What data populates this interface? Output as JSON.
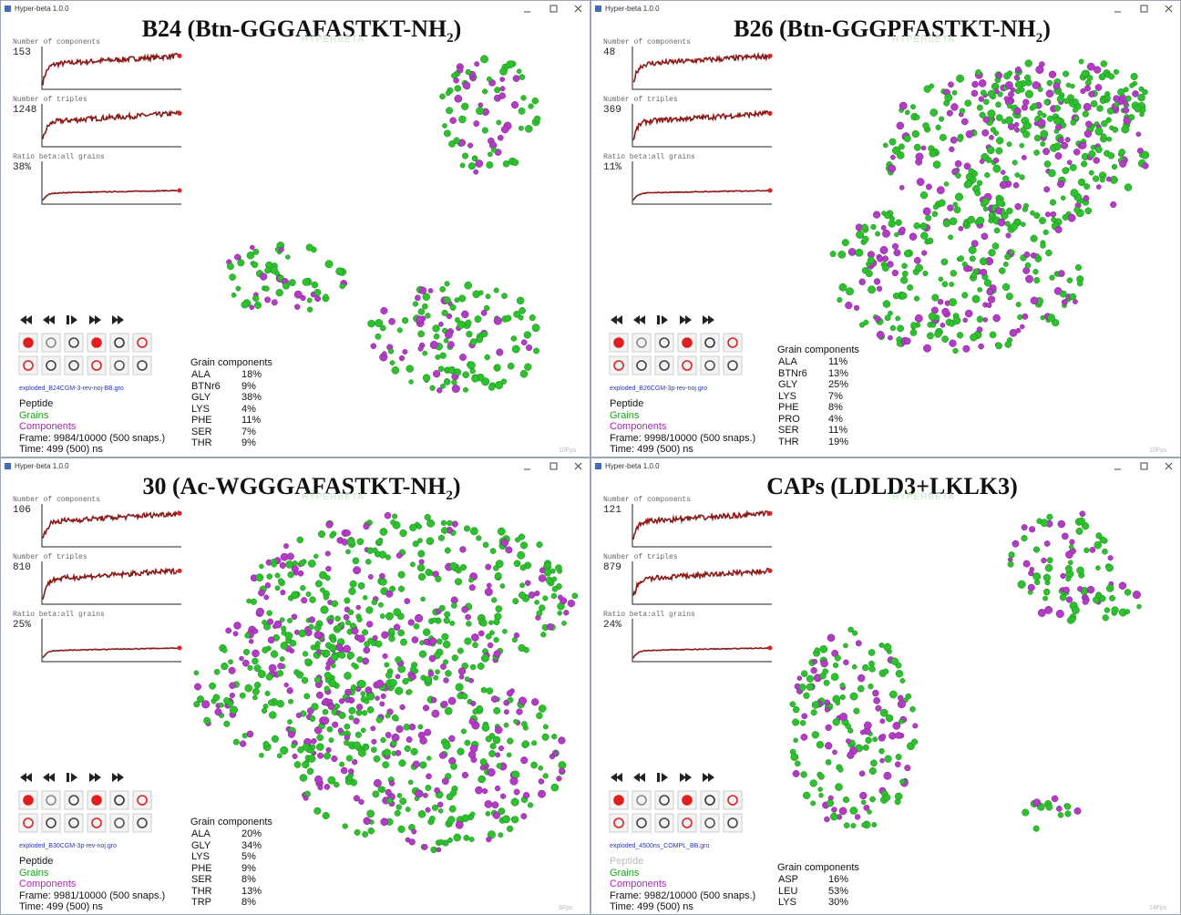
{
  "panels": [
    {
      "window_title": "Hyper-beta 1.0.0",
      "heading": {
        "main": "B24 (Btn-GGGAFASTKT-NH",
        "sub": "2",
        "end": ")"
      },
      "logo": "HYPERBETA",
      "stats": [
        {
          "label": "Number of components",
          "value": "153"
        },
        {
          "label": "Number of triples",
          "value": "1248"
        },
        {
          "label": "Ratio beta:all grains",
          "value": "38%"
        }
      ],
      "filename": "exploded_B24CGM-3-rev-noj-BB.gro",
      "legend": [
        {
          "text": "Peptide",
          "color": "#111111"
        },
        {
          "text": "Grains",
          "color": "#1e9e1e"
        },
        {
          "text": "Components",
          "color": "#b020c0"
        }
      ],
      "frame": "Frame: 9984/10000 (500 snaps.)",
      "time": "Time: 499 (500) ns",
      "grain_components": {
        "title": "Grain components",
        "rows": [
          [
            "ALA",
            "18%"
          ],
          [
            "BTNr6",
            "9%"
          ],
          [
            "GLY",
            "38%"
          ],
          [
            "LYS",
            "4%"
          ],
          [
            "PHE",
            "11%"
          ],
          [
            "SER",
            "7%"
          ],
          [
            "THR",
            "9%"
          ]
        ]
      },
      "fps": "10Fps"
    },
    {
      "window_title": "Hyper-beta 1.0.0",
      "heading": {
        "main": "B26 (Btn-GGGPFASTKT-NH",
        "sub": "2",
        "end": ")"
      },
      "logo": "HYPERBETA",
      "stats": [
        {
          "label": "Number of components",
          "value": "48"
        },
        {
          "label": "Number of triples",
          "value": "369"
        },
        {
          "label": "Ratio beta:all grains",
          "value": "11%"
        }
      ],
      "filename": "exploded_B26CGM-3p-rev-noj.gro",
      "legend": [
        {
          "text": "Peptide",
          "color": "#111111"
        },
        {
          "text": "Grains",
          "color": "#1e9e1e"
        },
        {
          "text": "Components",
          "color": "#b020c0"
        }
      ],
      "frame": "Frame: 9998/10000 (500 snaps.)",
      "time": "Time: 499 (500) ns",
      "grain_components": {
        "title": "Grain components",
        "rows": [
          [
            "ALA",
            "11%"
          ],
          [
            "BTNr6",
            "13%"
          ],
          [
            "GLY",
            "25%"
          ],
          [
            "LYS",
            "7%"
          ],
          [
            "PHE",
            "8%"
          ],
          [
            "PRO",
            "4%"
          ],
          [
            "SER",
            "11%"
          ],
          [
            "THR",
            "19%"
          ]
        ]
      },
      "fps": "10Fps"
    },
    {
      "window_title": "Hyper-beta 1.0.0",
      "heading": {
        "main": "30 (Ac-WGGGAFASTKT-NH",
        "sub": "2",
        "end": ")"
      },
      "logo": "HYPERBETA",
      "stats": [
        {
          "label": "Number of components",
          "value": "106"
        },
        {
          "label": "Number of triples",
          "value": "810"
        },
        {
          "label": "Ratio beta:all grains",
          "value": "25%"
        }
      ],
      "filename": "exploded_B30CGM-3p-rev-noj.gro",
      "legend": [
        {
          "text": "Peptide",
          "color": "#111111"
        },
        {
          "text": "Grains",
          "color": "#1e9e1e"
        },
        {
          "text": "Components",
          "color": "#b020c0"
        }
      ],
      "frame": "Frame: 9981/10000 (500 snaps.)",
      "time": "Time: 499 (500) ns",
      "grain_components": {
        "title": "Grain components",
        "rows": [
          [
            "ALA",
            "20%"
          ],
          [
            "GLY",
            "34%"
          ],
          [
            "LYS",
            "5%"
          ],
          [
            "PHE",
            "9%"
          ],
          [
            "SER",
            "8%"
          ],
          [
            "THR",
            "13%"
          ],
          [
            "TRP",
            "8%"
          ]
        ]
      },
      "fps": "8Fps"
    },
    {
      "window_title": "Hyper-beta 1.0.0",
      "heading": {
        "main": "CAPs (LDLD3+LKLK3)"
      },
      "logo": "HYPERBETA",
      "stats": [
        {
          "label": "Number of components",
          "value": "121"
        },
        {
          "label": "Number of triples",
          "value": "879"
        },
        {
          "label": "Ratio beta:all grains",
          "value": "24%"
        }
      ],
      "filename": "exploded_4500ns_COMPL_BB.gro",
      "legend": [
        {
          "text": "Peptide",
          "color": "#bbbbbb"
        },
        {
          "text": "Grains",
          "color": "#1e9e1e"
        },
        {
          "text": "Components",
          "color": "#b020c0"
        }
      ],
      "frame": "Frame: 9982/10000 (500 snaps.)",
      "time": "Time: 499 (500) ns",
      "grain_components": {
        "title": "Grain components",
        "rows": [
          [
            "ASP",
            "16%"
          ],
          [
            "LEU",
            "53%"
          ],
          [
            "LYS",
            "30%"
          ]
        ]
      },
      "fps": "14Fps"
    }
  ]
}
